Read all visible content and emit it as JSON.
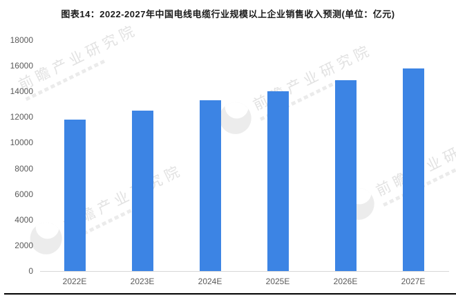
{
  "title": "图表14：2022-2027年中国电线电缆行业规模以上企业销售收入预测(单位：亿元)",
  "watermark": {
    "brand": "前瞻产业研究院"
  },
  "colors": {
    "bar": "#3C84E4",
    "axis_text": "#595959",
    "axis_line": "#d6d6d6",
    "watermark": "#e2e2e2",
    "title_text": "#1a1a1a"
  },
  "chart_data": {
    "type": "bar",
    "title": "图表14：2022-2027年中国电线电缆行业规模以上企业销售收入预测(单位：亿元)",
    "categories": [
      "2022E",
      "2023E",
      "2024E",
      "2025E",
      "2026E",
      "2027E"
    ],
    "values": [
      11800,
      12500,
      13300,
      14000,
      14900,
      15800
    ],
    "xlabel": "",
    "ylabel": "",
    "unit": "亿元",
    "ylim": [
      0,
      18000
    ],
    "ytick_step": 2000,
    "grid": false,
    "legend": false,
    "bar_color": "#3C84E4"
  }
}
